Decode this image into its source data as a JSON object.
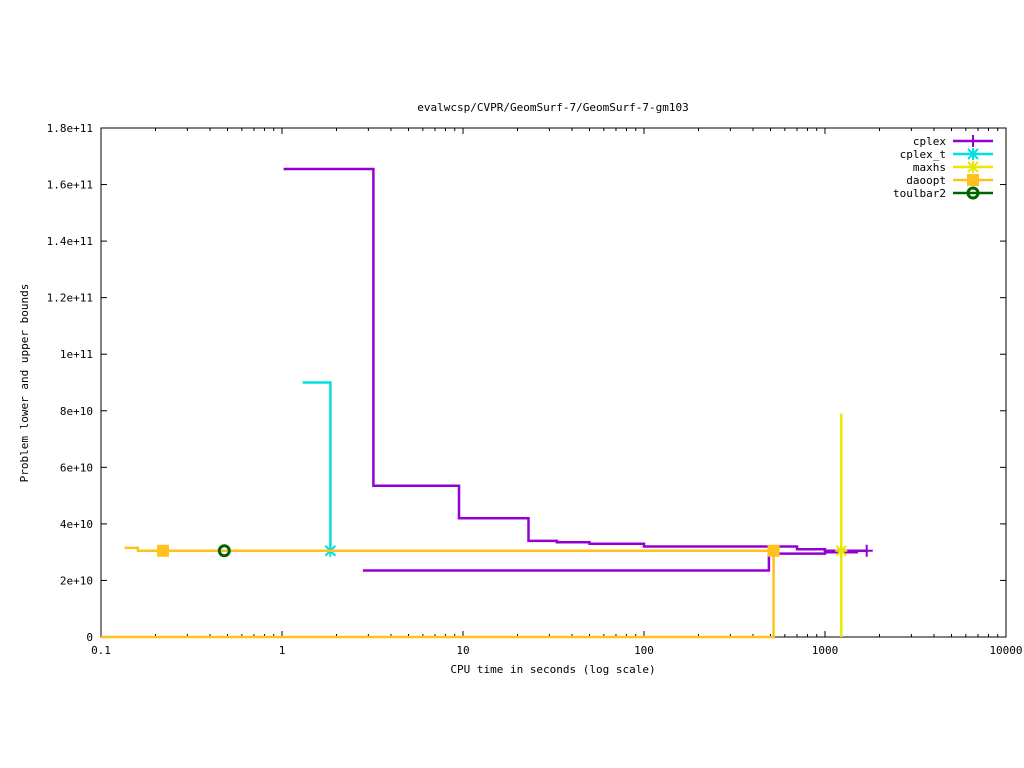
{
  "chart_data": {
    "type": "line",
    "title": "evalwcsp/CVPR/GeomSurf-7/GeomSurf-7-gm103",
    "xlabel": "CPU time in seconds (log scale)",
    "ylabel": "Problem lower and upper bounds",
    "xscale": "log",
    "xlim": [
      0.1,
      10000
    ],
    "ylim": [
      0,
      180000000000
    ],
    "grid": false,
    "legend_position": "top-right",
    "x_ticks": [
      {
        "value": 0.1,
        "label": "0.1"
      },
      {
        "value": 1,
        "label": "1"
      },
      {
        "value": 10,
        "label": "10"
      },
      {
        "value": 100,
        "label": "100"
      },
      {
        "value": 1000,
        "label": "1000"
      },
      {
        "value": 10000,
        "label": "10000"
      }
    ],
    "y_ticks": [
      {
        "value": 0,
        "label": "0"
      },
      {
        "value": 20000000000,
        "label": "2e+10"
      },
      {
        "value": 40000000000,
        "label": "4e+10"
      },
      {
        "value": 60000000000,
        "label": "6e+10"
      },
      {
        "value": 80000000000,
        "label": "8e+10"
      },
      {
        "value": 100000000000,
        "label": "1e+11"
      },
      {
        "value": 120000000000,
        "label": "1.2e+11"
      },
      {
        "value": 140000000000,
        "label": "1.4e+11"
      },
      {
        "value": 160000000000,
        "label": "1.6e+11"
      },
      {
        "value": 180000000000,
        "label": "1.8e+11"
      }
    ],
    "series": [
      {
        "name": "cplex",
        "color": "#9400d3",
        "marker": "plus",
        "upper": [
          [
            1.02,
            165500000000
          ],
          [
            3.2,
            165500000000
          ],
          [
            3.2,
            53500000000
          ],
          [
            9.5,
            53500000000
          ],
          [
            9.5,
            42000000000
          ],
          [
            23,
            42000000000
          ],
          [
            23,
            34000000000
          ],
          [
            33,
            34000000000
          ],
          [
            33,
            33500000000
          ],
          [
            50,
            33500000000
          ],
          [
            50,
            33000000000
          ],
          [
            100,
            33000000000
          ],
          [
            100,
            32000000000
          ],
          [
            700,
            32000000000
          ],
          [
            700,
            31000000000
          ],
          [
            1000,
            31000000000
          ],
          [
            1000,
            30500000000
          ],
          [
            1700,
            30500000000
          ]
        ],
        "lower": [
          [
            2.8,
            23500000000
          ],
          [
            490,
            23500000000
          ],
          [
            490,
            29500000000
          ],
          [
            1000,
            29500000000
          ],
          [
            1000,
            30000000000
          ],
          [
            1500,
            30000000000
          ],
          [
            1500,
            30500000000
          ],
          [
            1700,
            30500000000
          ]
        ],
        "markers": [
          [
            1700,
            30500000000
          ]
        ]
      },
      {
        "name": "cplex_t",
        "color": "#00e0e0",
        "marker": "star",
        "upper": [
          [
            1.3,
            90000000000
          ],
          [
            1.85,
            90000000000
          ],
          [
            1.85,
            30500000000
          ]
        ],
        "lower": [],
        "markers": [
          [
            1.85,
            30500000000
          ]
        ]
      },
      {
        "name": "maxhs",
        "color": "#e8e800",
        "marker": "star",
        "upper": [
          [
            1230,
            79000000000
          ],
          [
            1230,
            30500000000
          ]
        ],
        "lower": [
          [
            1230,
            0
          ],
          [
            1230,
            30500000000
          ]
        ],
        "markers": [
          [
            1230,
            30500000000
          ]
        ]
      },
      {
        "name": "daoopt",
        "color": "#ffc020",
        "marker": "square",
        "upper": [
          [
            0.135,
            31500000000
          ],
          [
            0.16,
            31500000000
          ],
          [
            0.16,
            30500000000
          ],
          [
            520,
            30500000000
          ]
        ],
        "lower": [
          [
            0.1,
            0
          ],
          [
            520,
            0
          ],
          [
            520,
            30500000000
          ]
        ],
        "markers": [
          [
            0.22,
            30500000000
          ],
          [
            520,
            30500000000
          ]
        ]
      },
      {
        "name": "toulbar2",
        "color": "#006400",
        "marker": "circle",
        "upper": [],
        "lower": [],
        "markers": [
          [
            0.48,
            30500000000
          ]
        ]
      }
    ]
  }
}
